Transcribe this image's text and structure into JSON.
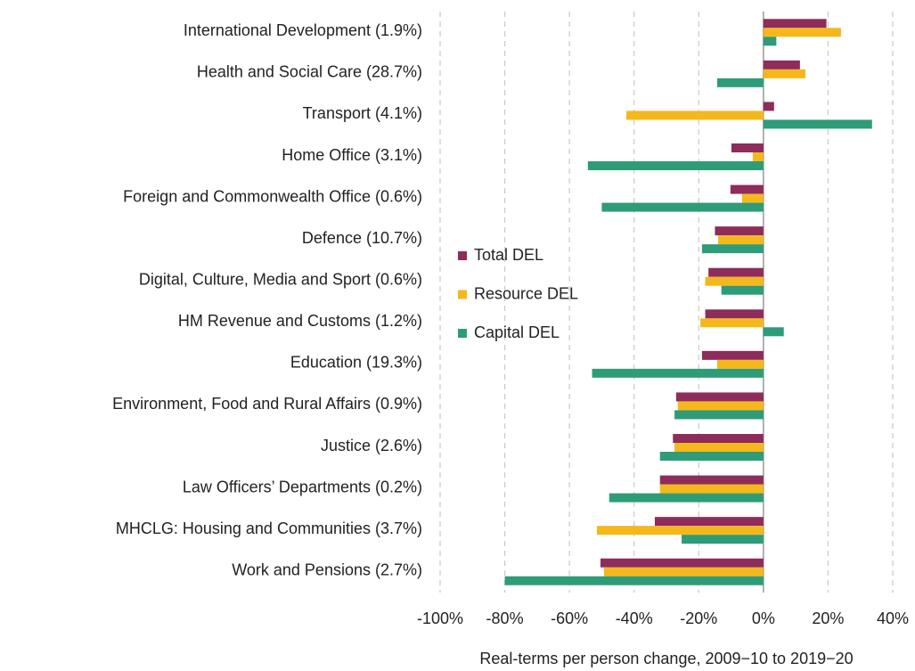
{
  "chart_data": {
    "type": "barh",
    "categories": [
      "International Development (1.9%)",
      "Health and Social Care (28.7%)",
      "Transport (4.1%)",
      "Home Office (3.1%)",
      "Foreign and Commonwealth Office (0.6%)",
      "Defence (10.7%)",
      "Digital, Culture, Media and Sport (0.6%)",
      "HM Revenue and Customs (1.2%)",
      "Education (19.3%)",
      "Environment, Food and Rural Affairs (0.9%)",
      "Justice (2.6%)",
      "Law Officers’ Departments (0.2%)",
      "MHCLG: Housing and Communities (3.7%)",
      "Work and Pensions (2.7%)"
    ],
    "series": [
      {
        "name": "Total DEL",
        "color": "#8e2c5b",
        "values": [
          19.5,
          11.3,
          3.3,
          -9.9,
          -10.2,
          -15,
          -17,
          -18,
          -19,
          -27,
          -28,
          -32,
          -33.6,
          -50.4
        ]
      },
      {
        "name": "Resource DEL",
        "color": "#f4b81c",
        "values": [
          24,
          13,
          -42.4,
          -3.3,
          -6.6,
          -14,
          -18,
          -19.5,
          -14.3,
          -26.5,
          -27.5,
          -32,
          -51.5,
          -49.3
        ]
      },
      {
        "name": "Capital DEL",
        "color": "#2e9c78",
        "values": [
          4,
          -14.3,
          33.6,
          -54.3,
          -50,
          -19,
          -13,
          6.3,
          -53,
          -27.5,
          -32,
          -47.7,
          -25.3,
          -80
        ]
      }
    ],
    "xlabel": "Real-terms per person change, 2009−10 to 2019−20",
    "xlim": [
      -100,
      40
    ],
    "xticks": [
      {
        "value": -100,
        "label": "-100%"
      },
      {
        "value": -80,
        "label": "-80%"
      },
      {
        "value": -60,
        "label": "-60%"
      },
      {
        "value": -40,
        "label": "-40%"
      },
      {
        "value": -20,
        "label": "-20%"
      },
      {
        "value": 0,
        "label": "0%"
      },
      {
        "value": 20,
        "label": "20%"
      },
      {
        "value": 40,
        "label": "40%"
      }
    ],
    "grid": true,
    "legend": "left"
  }
}
